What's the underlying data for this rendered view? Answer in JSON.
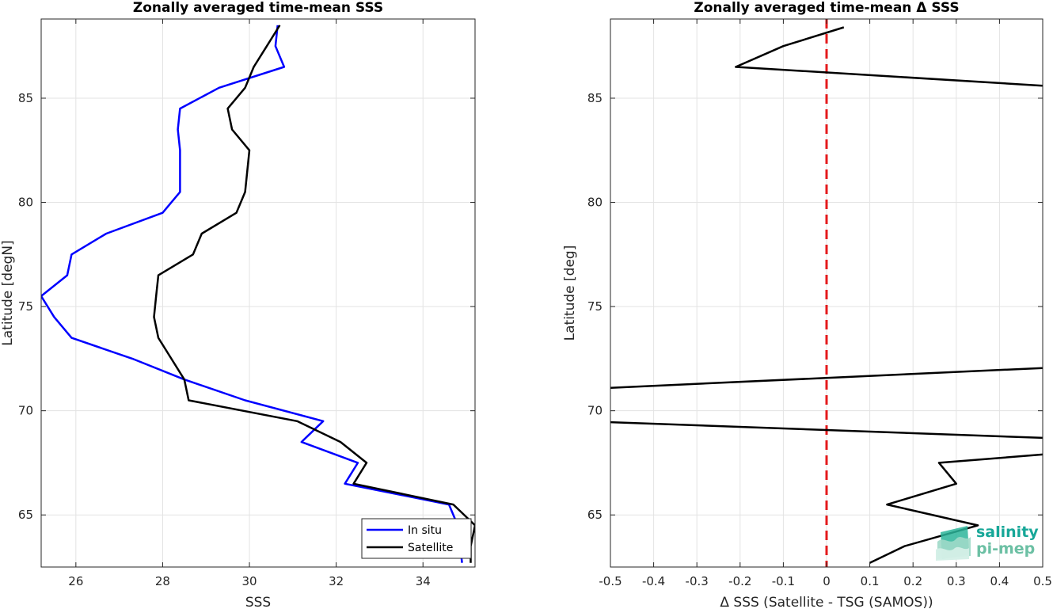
{
  "chart_data": [
    {
      "type": "line",
      "title": "Zonally averaged time-mean SSS",
      "xlabel": "SSS",
      "ylabel": "Latitude [degN]",
      "xlim": [
        25.2,
        35.2
      ],
      "ylim": [
        62.5,
        88.8
      ],
      "xticks": [
        26,
        28,
        30,
        32,
        34
      ],
      "yticks": [
        65,
        70,
        75,
        80,
        85
      ],
      "grid": true,
      "legend": "bottom-right",
      "series": [
        {
          "name": "In situ",
          "color": "#0000ff",
          "points": [
            [
              34.9,
              62.7
            ],
            [
              34.8,
              64.5
            ],
            [
              34.6,
              65.5
            ],
            [
              32.2,
              66.5
            ],
            [
              32.5,
              67.5
            ],
            [
              31.2,
              68.5
            ],
            [
              31.7,
              69.5
            ],
            [
              29.9,
              70.5
            ],
            [
              28.5,
              71.5
            ],
            [
              27.3,
              72.5
            ],
            [
              25.9,
              73.5
            ],
            [
              25.5,
              74.5
            ],
            [
              25.2,
              75.5
            ],
            [
              25.8,
              76.5
            ],
            [
              25.9,
              77.5
            ],
            [
              26.7,
              78.5
            ],
            [
              28.0,
              79.5
            ],
            [
              28.4,
              80.5
            ],
            [
              28.4,
              81.5
            ],
            [
              28.4,
              82.5
            ],
            [
              28.35,
              83.5
            ],
            [
              28.4,
              84.5
            ],
            [
              29.3,
              85.5
            ],
            [
              30.8,
              86.5
            ],
            [
              30.6,
              87.5
            ],
            [
              30.65,
              88.5
            ]
          ]
        },
        {
          "name": "Satellite",
          "color": "#000000",
          "points": [
            [
              35.1,
              62.7
            ],
            [
              35.1,
              63.5
            ],
            [
              35.2,
              64.5
            ],
            [
              34.7,
              65.5
            ],
            [
              32.4,
              66.5
            ],
            [
              32.7,
              67.5
            ],
            [
              32.1,
              68.5
            ],
            [
              31.1,
              69.5
            ],
            [
              28.6,
              70.5
            ],
            [
              28.5,
              71.5
            ],
            [
              28.2,
              72.5
            ],
            [
              27.9,
              73.5
            ],
            [
              27.8,
              74.5
            ],
            [
              27.85,
              75.5
            ],
            [
              27.9,
              76.5
            ],
            [
              28.7,
              77.5
            ],
            [
              28.9,
              78.5
            ],
            [
              29.7,
              79.5
            ],
            [
              29.9,
              80.5
            ],
            [
              29.95,
              81.5
            ],
            [
              30.0,
              82.5
            ],
            [
              29.6,
              83.5
            ],
            [
              29.5,
              84.5
            ],
            [
              29.9,
              85.5
            ],
            [
              30.1,
              86.5
            ],
            [
              30.4,
              87.5
            ],
            [
              30.7,
              88.5
            ]
          ]
        }
      ]
    },
    {
      "type": "line",
      "title": "Zonally averaged time-mean Δ SSS",
      "xlabel": "Δ SSS (Satellite - TSG (SAMOS))",
      "ylabel": "Latitude [deg]",
      "xlim": [
        -0.5,
        0.5
      ],
      "ylim": [
        62.5,
        88.8
      ],
      "xticks": [
        -0.5,
        -0.4,
        -0.3,
        -0.2,
        -0.1,
        0,
        0.1,
        0.2,
        0.3,
        0.4,
        0.5
      ],
      "yticks": [
        65,
        70,
        75,
        80,
        85
      ],
      "grid": true,
      "reference_line": {
        "x": 0,
        "color": "#e41a1c",
        "style": "dashed"
      },
      "series": [
        {
          "color": "#000000",
          "points": [
            [
              0.1,
              62.7
            ],
            [
              0.18,
              63.5
            ],
            [
              0.35,
              64.5
            ],
            [
              0.14,
              65.5
            ],
            [
              0.3,
              66.5
            ],
            [
              0.26,
              67.5
            ],
            [
              0.5,
              67.9
            ]
          ],
          "points_segment_2": [
            [
              0.5,
              68.7
            ],
            [
              -0.5,
              69.45
            ]
          ],
          "points_segment_3": [
            [
              -0.5,
              71.1
            ],
            [
              0.5,
              72.05
            ]
          ],
          "points_segment_4": [
            [
              0.5,
              85.6
            ],
            [
              -0.21,
              86.5
            ],
            [
              -0.1,
              87.5
            ],
            [
              0.04,
              88.4
            ]
          ]
        }
      ]
    }
  ],
  "logo": {
    "line1": "salinity",
    "line2": "pi-mep"
  }
}
